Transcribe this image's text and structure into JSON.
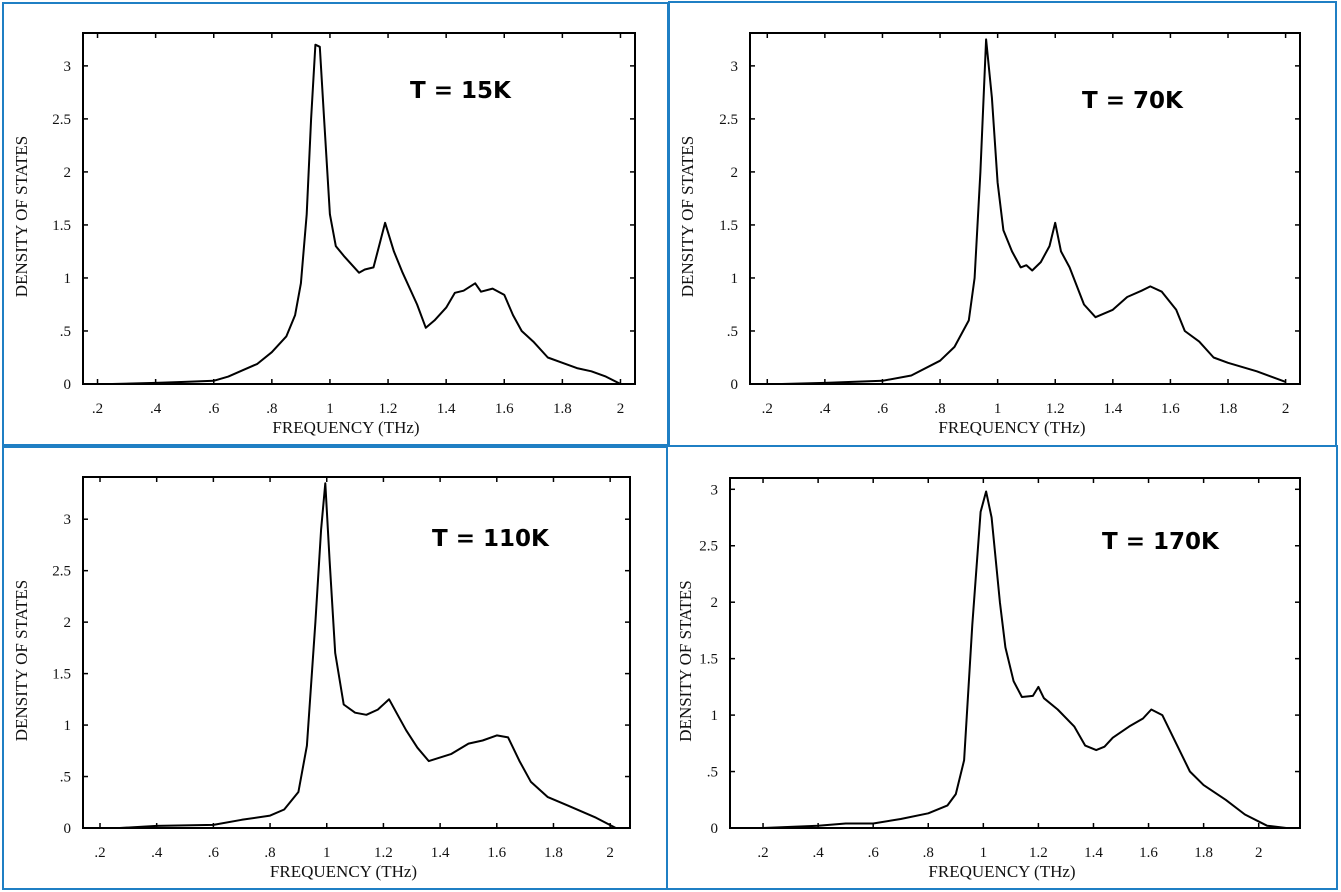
{
  "colors": {
    "frame": "#1f7fc4",
    "curve": "#000000",
    "axes": "#000000"
  },
  "chart_data": [
    {
      "type": "line",
      "annotation": "T = 15K",
      "xlabel": "FREQUENCY (THz)",
      "ylabel": "DENSITY OF STATES",
      "xlim": [
        0.15,
        2.05
      ],
      "ylim": [
        0,
        3.31
      ],
      "xticks": [
        0.2,
        0.4,
        0.6,
        0.8,
        1,
        1.2,
        1.4,
        1.6,
        1.8,
        2
      ],
      "xtick_labels": [
        ".2",
        ".4",
        ".6",
        ".8",
        "1",
        "1.2",
        "1.4",
        "1.6",
        "1.8",
        "2"
      ],
      "yticks": [
        0,
        0.5,
        1,
        1.5,
        2,
        2.5,
        3
      ],
      "ytick_labels": [
        "0",
        ".5",
        "1",
        "1.5",
        "2",
        "2.5",
        "3"
      ],
      "grid": false,
      "x": [
        0.25,
        0.4,
        0.5,
        0.6,
        0.65,
        0.7,
        0.75,
        0.8,
        0.85,
        0.88,
        0.9,
        0.92,
        0.935,
        0.95,
        0.965,
        0.98,
        1.0,
        1.02,
        1.05,
        1.1,
        1.12,
        1.15,
        1.19,
        1.22,
        1.25,
        1.3,
        1.33,
        1.36,
        1.4,
        1.43,
        1.46,
        1.5,
        1.52,
        1.56,
        1.6,
        1.63,
        1.66,
        1.7,
        1.75,
        1.8,
        1.85,
        1.9,
        1.95,
        2.0
      ],
      "y": [
        0,
        0.01,
        0.02,
        0.03,
        0.07,
        0.13,
        0.19,
        0.3,
        0.45,
        0.65,
        0.95,
        1.6,
        2.5,
        3.2,
        3.18,
        2.5,
        1.6,
        1.3,
        1.2,
        1.05,
        1.08,
        1.1,
        1.52,
        1.25,
        1.05,
        0.75,
        0.53,
        0.6,
        0.72,
        0.86,
        0.88,
        0.95,
        0.87,
        0.9,
        0.84,
        0.65,
        0.5,
        0.4,
        0.25,
        0.2,
        0.15,
        0.12,
        0.07,
        0.0
      ]
    },
    {
      "type": "line",
      "annotation": "T = 70K",
      "xlabel": "FREQUENCY (THz)",
      "ylabel": "DENSITY OF STATES",
      "xlim": [
        0.14,
        2.05
      ],
      "ylim": [
        0,
        3.31
      ],
      "xticks": [
        0.2,
        0.4,
        0.6,
        0.8,
        1,
        1.2,
        1.4,
        1.6,
        1.8,
        2
      ],
      "xtick_labels": [
        ".2",
        ".4",
        ".6",
        ".8",
        "1",
        "1.2",
        "1.4",
        "1.6",
        "1.8",
        "2"
      ],
      "yticks": [
        0,
        0.5,
        1,
        1.5,
        2,
        2.5,
        3
      ],
      "ytick_labels": [
        "0",
        ".5",
        "1",
        "1.5",
        "2",
        "2.5",
        "3"
      ],
      "grid": false,
      "x": [
        0.25,
        0.4,
        0.6,
        0.7,
        0.8,
        0.85,
        0.9,
        0.92,
        0.94,
        0.96,
        0.98,
        1.0,
        1.02,
        1.05,
        1.08,
        1.1,
        1.12,
        1.15,
        1.18,
        1.2,
        1.22,
        1.25,
        1.3,
        1.34,
        1.4,
        1.45,
        1.5,
        1.53,
        1.57,
        1.62,
        1.65,
        1.7,
        1.75,
        1.8,
        1.9,
        2.0
      ],
      "y": [
        0,
        0.01,
        0.03,
        0.08,
        0.22,
        0.35,
        0.6,
        1.0,
        2.0,
        3.25,
        2.7,
        1.9,
        1.45,
        1.25,
        1.1,
        1.12,
        1.07,
        1.15,
        1.3,
        1.52,
        1.25,
        1.1,
        0.75,
        0.63,
        0.7,
        0.82,
        0.88,
        0.92,
        0.87,
        0.7,
        0.5,
        0.4,
        0.25,
        0.2,
        0.12,
        0.02
      ]
    },
    {
      "type": "line",
      "annotation": "T = 110K",
      "xlabel": "FREQUENCY (THz)",
      "ylabel": "DENSITY OF STATES",
      "xlim": [
        0.14,
        2.07
      ],
      "ylim": [
        0,
        3.41
      ],
      "xticks": [
        0.2,
        0.4,
        0.6,
        0.8,
        1,
        1.2,
        1.4,
        1.6,
        1.8,
        2
      ],
      "xtick_labels": [
        ".2",
        ".4",
        ".6",
        ".8",
        "1",
        "1.2",
        "1.4",
        "1.6",
        "1.8",
        "2"
      ],
      "yticks": [
        0,
        0.5,
        1,
        1.5,
        2,
        2.5,
        3
      ],
      "ytick_labels": [
        "0",
        ".5",
        "1",
        "1.5",
        "2",
        "2.5",
        "3"
      ],
      "grid": false,
      "x": [
        0.27,
        0.4,
        0.6,
        0.7,
        0.8,
        0.85,
        0.9,
        0.93,
        0.96,
        0.98,
        0.995,
        1.01,
        1.03,
        1.06,
        1.1,
        1.14,
        1.18,
        1.22,
        1.25,
        1.28,
        1.32,
        1.36,
        1.44,
        1.5,
        1.55,
        1.6,
        1.64,
        1.68,
        1.72,
        1.78,
        1.85,
        1.95,
        2.02
      ],
      "y": [
        0,
        0.02,
        0.03,
        0.08,
        0.12,
        0.18,
        0.35,
        0.8,
        2.0,
        2.9,
        3.35,
        2.6,
        1.7,
        1.2,
        1.12,
        1.1,
        1.15,
        1.25,
        1.1,
        0.95,
        0.78,
        0.65,
        0.72,
        0.82,
        0.85,
        0.9,
        0.88,
        0.65,
        0.45,
        0.3,
        0.22,
        0.1,
        0.0
      ]
    },
    {
      "type": "line",
      "annotation": "T = 170K",
      "xlabel": "FREQUENCY (THz)",
      "ylabel": "DENSITY OF STATES",
      "xlim": [
        0.08,
        2.15
      ],
      "ylim": [
        0,
        3.1
      ],
      "xticks": [
        0.2,
        0.4,
        0.6,
        0.8,
        1,
        1.2,
        1.4,
        1.6,
        1.8,
        2
      ],
      "xtick_labels": [
        ".2",
        ".4",
        ".6",
        ".8",
        "1",
        "1.2",
        "1.4",
        "1.6",
        "1.8",
        "2"
      ],
      "yticks": [
        0,
        0.5,
        1,
        1.5,
        2,
        2.5,
        3
      ],
      "ytick_labels": [
        "0",
        ".5",
        "1",
        "1.5",
        "2",
        "2.5",
        "3"
      ],
      "grid": false,
      "x": [
        0.1,
        0.2,
        0.4,
        0.5,
        0.6,
        0.7,
        0.8,
        0.87,
        0.9,
        0.93,
        0.96,
        0.99,
        1.01,
        1.03,
        1.06,
        1.08,
        1.11,
        1.14,
        1.18,
        1.2,
        1.22,
        1.27,
        1.33,
        1.37,
        1.41,
        1.44,
        1.47,
        1.53,
        1.58,
        1.61,
        1.65,
        1.7,
        1.75,
        1.8,
        1.88,
        1.95,
        2.03,
        2.1,
        2.15
      ],
      "y": [
        0,
        0,
        0.02,
        0.04,
        0.04,
        0.08,
        0.13,
        0.2,
        0.3,
        0.6,
        1.8,
        2.8,
        2.98,
        2.75,
        2.0,
        1.6,
        1.3,
        1.16,
        1.17,
        1.25,
        1.15,
        1.05,
        0.9,
        0.73,
        0.69,
        0.72,
        0.8,
        0.9,
        0.97,
        1.05,
        1.0,
        0.75,
        0.5,
        0.38,
        0.25,
        0.12,
        0.02,
        0,
        0
      ]
    }
  ]
}
